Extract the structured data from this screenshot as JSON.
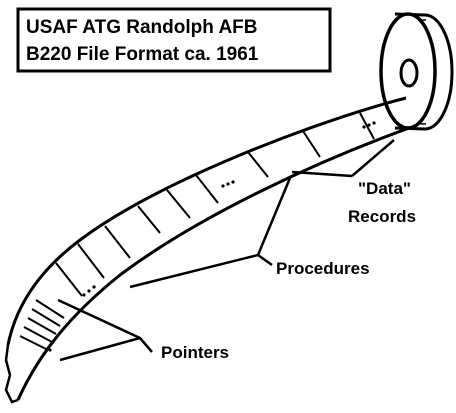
{
  "diagram": {
    "title_lines": [
      "USAF ATG Randolph AFB",
      "B220 File Format ca. 1961"
    ],
    "labels": {
      "data_line1": "\"Data\"",
      "data_line2": "Records",
      "procedures": "Procedures",
      "pointers": "Pointers"
    },
    "ink_color": "#000000",
    "paper_color": "#ffffff"
  }
}
